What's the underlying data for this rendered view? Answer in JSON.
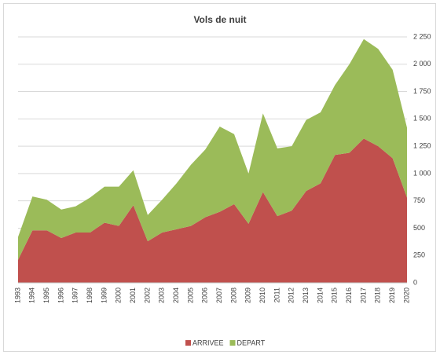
{
  "chart_data": {
    "type": "area",
    "stacked": true,
    "title": "Vols de nuit",
    "categories": [
      "1993",
      "1994",
      "1995",
      "1996",
      "1997",
      "1998",
      "1999",
      "2000",
      "2001",
      "2002",
      "2003",
      "2004",
      "2005",
      "2006",
      "2007",
      "2008",
      "2009",
      "2010",
      "2011",
      "2012",
      "2013",
      "2014",
      "2015",
      "2016",
      "2017",
      "2018",
      "2019",
      "2020"
    ],
    "series": [
      {
        "name": "ARRIVEE",
        "color": "#c0504d",
        "values": [
          210,
          480,
          480,
          410,
          460,
          460,
          550,
          520,
          710,
          380,
          460,
          490,
          520,
          600,
          650,
          720,
          540,
          830,
          610,
          660,
          840,
          910,
          1170,
          1190,
          1320,
          1250,
          1140,
          780
        ]
      },
      {
        "name": "DEPART",
        "color": "#9bbb59",
        "values": [
          210,
          310,
          280,
          260,
          240,
          320,
          330,
          360,
          320,
          240,
          300,
          420,
          560,
          620,
          780,
          640,
          460,
          720,
          620,
          590,
          650,
          650,
          640,
          810,
          910,
          890,
          810,
          640
        ]
      }
    ],
    "ylim": [
      0,
      2250
    ],
    "yticks": [
      0,
      250,
      500,
      750,
      {
        "value": 1000,
        "label": "1 000"
      },
      {
        "value": 1250,
        "label": "1 250"
      },
      {
        "value": 1500,
        "label": "1 500"
      },
      {
        "value": 1750,
        "label": "1 750"
      },
      {
        "value": 2000,
        "label": "2 000"
      },
      {
        "value": 2250,
        "label": "2 250"
      }
    ],
    "y_axis_side": "right",
    "grid": true,
    "legend": "bottom"
  }
}
